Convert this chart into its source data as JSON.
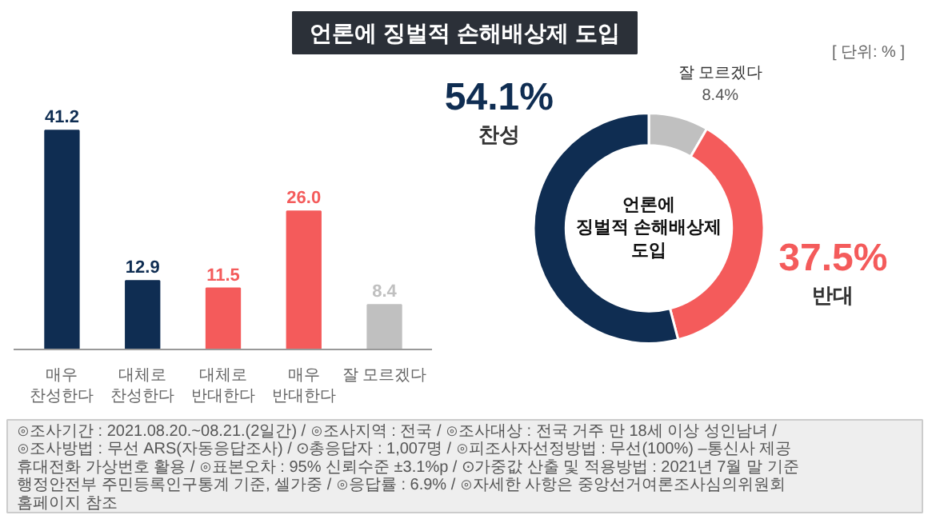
{
  "chart_data": [
    {
      "type": "bar",
      "title": "언론에 징벌적 손해배상제 도입",
      "categories": [
        "매우\n찬성한다",
        "대체로\n찬성한다",
        "대체로\n반대한다",
        "매우\n반대한다",
        "잘 모르겠다"
      ],
      "values": [
        41.2,
        12.9,
        11.5,
        26.0,
        8.4
      ],
      "colors": [
        "#0f2d52",
        "#0f2d52",
        "#f45b5b",
        "#f45b5b",
        "#c0c0c0"
      ],
      "value_labels": [
        "41.2",
        "12.9",
        "11.5",
        "26.0",
        "8.4"
      ],
      "annotations": [
        "[ 단위: % ]",
        "⊙조사기간 : 2021.08.20.~08.21.(2일간) / ⊙조사지역 : 전국 / ⊙조사대상 : 전국 거주 만 18세 이상 성인남녀 /",
        "⊙조사방법 : 무선 ARS(자동응답조사) / ⊙총응답자 : 1,007명 / ⊙피조사자선정방법 : 무선(100%) –통신사 제공",
        "휴대전화 가상번호 활용 / ⊙표본오차 : 95% 신뢰수준 ±3.1%p / ⊙가중값 산출 및 적용방법 : 2021년 7월 말 기준",
        "행정안전부 주민등록인구통계 기준, 셀가중 / ⊙응답률 : 6.9% / ⊙자세한 사항은 중앙선거여론조사심의위원회",
        "홈페이지 참조"
      ]
    },
    {
      "type": "donut",
      "categories": [
        "잘 모르겠다",
        "반대",
        "찬성"
      ],
      "values": [
        8.4,
        37.5,
        54.1
      ],
      "colors": [
        "#c0c0c0",
        "#f45b5b",
        "#0f2d52"
      ],
      "value_labels": [
        "8.4%",
        "37.5%",
        "54.1%"
      ],
      "annotations": [
        "언론에\n징벌적 손해배상제\n도입"
      ]
    }
  ]
}
